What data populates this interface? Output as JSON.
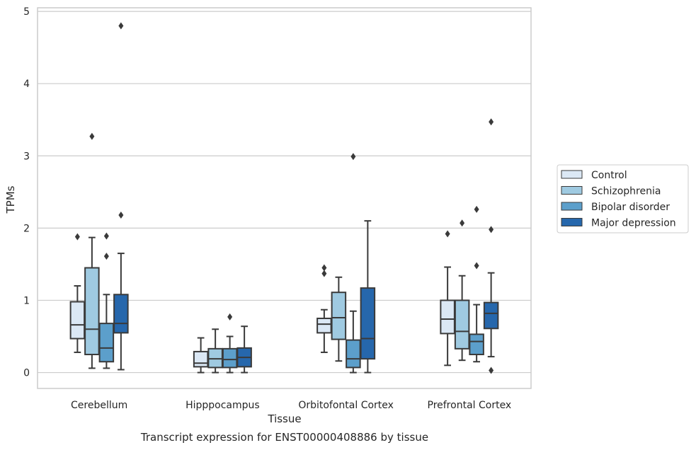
{
  "chart_data": {
    "type": "box",
    "caption": "Transcript expression for ENST00000408886 by tissue",
    "xlabel": "Tissue",
    "ylabel": "TPMs",
    "ylim": [
      -0.22,
      5.05
    ],
    "yticks": [
      0,
      1,
      2,
      3,
      4,
      5
    ],
    "grid": true,
    "legend_position": "right",
    "categories": [
      "Cerebellum",
      "Hipppocampus",
      "Orbitofontal Cortex",
      "Prefrontal Cortex"
    ],
    "series": [
      {
        "name": "Control",
        "color": "#dbe8f5",
        "boxes": [
          {
            "whislo": 0.28,
            "q1": 0.47,
            "med": 0.66,
            "q3": 0.98,
            "whishi": 1.2,
            "fliers": [
              1.88
            ]
          },
          {
            "whislo": 0.0,
            "q1": 0.08,
            "med": 0.13,
            "q3": 0.29,
            "whishi": 0.48,
            "fliers": []
          },
          {
            "whislo": 0.28,
            "q1": 0.55,
            "med": 0.67,
            "q3": 0.75,
            "whishi": 0.87,
            "fliers": [
              1.37,
              1.45
            ]
          },
          {
            "whislo": 0.1,
            "q1": 0.54,
            "med": 0.74,
            "q3": 1.0,
            "whishi": 1.46,
            "fliers": [
              1.92
            ]
          }
        ]
      },
      {
        "name": "Schizophrenia",
        "color": "#9fcae1",
        "boxes": [
          {
            "whislo": 0.06,
            "q1": 0.25,
            "med": 0.6,
            "q3": 1.45,
            "whishi": 1.87,
            "fliers": [
              3.27
            ]
          },
          {
            "whislo": 0.0,
            "q1": 0.07,
            "med": 0.19,
            "q3": 0.33,
            "whishi": 0.6,
            "fliers": []
          },
          {
            "whislo": 0.16,
            "q1": 0.46,
            "med": 0.76,
            "q3": 1.11,
            "whishi": 1.32,
            "fliers": []
          },
          {
            "whislo": 0.17,
            "q1": 0.33,
            "med": 0.57,
            "q3": 1.0,
            "whishi": 1.34,
            "fliers": [
              2.07
            ]
          }
        ]
      },
      {
        "name": "Bipolar disorder",
        "color": "#5c9fcb",
        "boxes": [
          {
            "whislo": 0.06,
            "q1": 0.15,
            "med": 0.34,
            "q3": 0.68,
            "whishi": 1.08,
            "fliers": [
              1.61,
              1.89
            ]
          },
          {
            "whislo": 0.0,
            "q1": 0.07,
            "med": 0.18,
            "q3": 0.33,
            "whishi": 0.5,
            "fliers": [
              0.77
            ]
          },
          {
            "whislo": 0.0,
            "q1": 0.07,
            "med": 0.19,
            "q3": 0.45,
            "whishi": 0.85,
            "fliers": [
              2.99
            ]
          },
          {
            "whislo": 0.15,
            "q1": 0.25,
            "med": 0.43,
            "q3": 0.53,
            "whishi": 0.94,
            "fliers": [
              1.48,
              2.26
            ]
          }
        ]
      },
      {
        "name": "Major depression",
        "color": "#2667ac",
        "boxes": [
          {
            "whislo": 0.04,
            "q1": 0.55,
            "med": 0.68,
            "q3": 1.08,
            "whishi": 1.65,
            "fliers": [
              2.18,
              4.8
            ]
          },
          {
            "whislo": 0.0,
            "q1": 0.08,
            "med": 0.21,
            "q3": 0.34,
            "whishi": 0.64,
            "fliers": []
          },
          {
            "whislo": 0.0,
            "q1": 0.19,
            "med": 0.47,
            "q3": 1.17,
            "whishi": 2.1,
            "fliers": []
          },
          {
            "whislo": 0.22,
            "q1": 0.61,
            "med": 0.82,
            "q3": 0.97,
            "whishi": 1.38,
            "fliers": [
              0.03,
              1.98,
              3.47
            ]
          }
        ]
      }
    ]
  }
}
